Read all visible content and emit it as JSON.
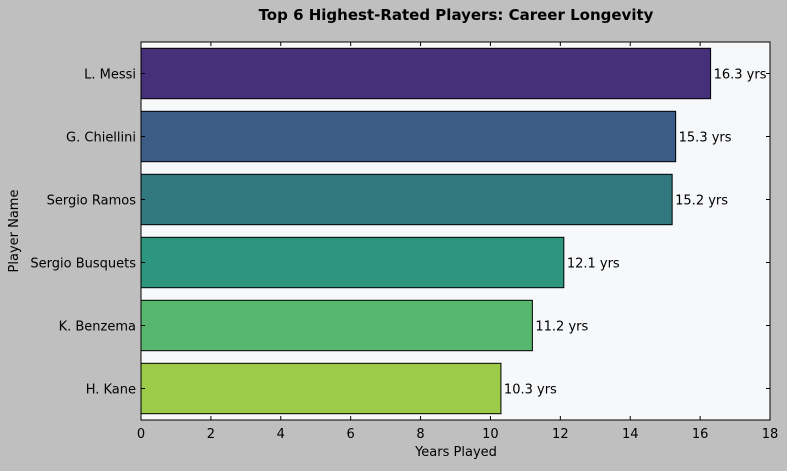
{
  "chart_data": {
    "type": "bar",
    "orientation": "horizontal",
    "title": "Top 6 Highest-Rated Players: Career Longevity",
    "xlabel": "Years Played",
    "ylabel": "Player Name",
    "categories": [
      "L. Messi",
      "G. Chiellini",
      "Sergio Ramos",
      "Sergio Busquets",
      "K. Benzema",
      "H. Kane"
    ],
    "values": [
      16.3,
      15.3,
      15.2,
      12.1,
      11.2,
      10.3
    ],
    "data_labels": [
      "16.3 yrs",
      "15.3 yrs",
      "15.2 yrs",
      "12.1 yrs",
      "11.2 yrs",
      "10.3 yrs"
    ],
    "xlim": [
      0,
      18
    ],
    "xticks": [
      0,
      2,
      4,
      6,
      8,
      10,
      12,
      14,
      16,
      18
    ],
    "grid": false,
    "legend": "none",
    "colors": [
      "#47307a",
      "#3d5d87",
      "#32787f",
      "#2d967f",
      "#58b76f",
      "#9bcb49"
    ],
    "plot_background": "#f7f8fa",
    "figure_background": "#bfbfbf"
  }
}
